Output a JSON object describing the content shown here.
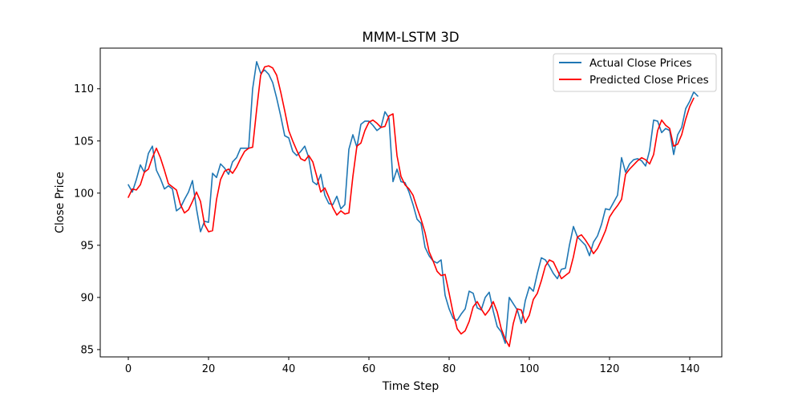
{
  "chart_data": {
    "type": "line",
    "title": "MMM-LSTM 3D",
    "xlabel": "Time Step",
    "ylabel": "Close Price",
    "xlim": [
      -7,
      148
    ],
    "ylim": [
      84.3,
      113.9
    ],
    "xticks": [
      0,
      20,
      40,
      60,
      80,
      100,
      120,
      140
    ],
    "yticks": [
      85,
      90,
      95,
      100,
      105,
      110
    ],
    "grid": false,
    "legend_position": "top-right",
    "series": [
      {
        "name": "Actual Close Prices",
        "color": "#1f77b4",
        "values": [
          100.8,
          100.1,
          101.3,
          102.7,
          102.0,
          103.8,
          104.5,
          102.2,
          101.4,
          100.4,
          100.7,
          100.4,
          98.3,
          98.6,
          99.4,
          100.1,
          101.2,
          98.5,
          96.3,
          97.3,
          97.2,
          101.9,
          101.5,
          102.8,
          102.4,
          101.8,
          103.0,
          103.4,
          104.3,
          104.3,
          104.3,
          110.0,
          112.6,
          111.5,
          111.8,
          111.4,
          110.6,
          109.1,
          107.4,
          105.5,
          105.3,
          104.0,
          103.6,
          104.0,
          104.5,
          103.4,
          101.1,
          100.8,
          101.8,
          99.8,
          99.0,
          98.9,
          99.7,
          98.5,
          98.9,
          104.2,
          105.6,
          104.4,
          106.6,
          106.9,
          106.9,
          106.5,
          106.0,
          106.3,
          107.8,
          107.2,
          101.1,
          102.3,
          101.1,
          101.0,
          100.1,
          98.9,
          97.5,
          97.1,
          94.8,
          94.0,
          93.5,
          93.3,
          93.6,
          90.2,
          88.9,
          88.0,
          87.8,
          88.4,
          88.9,
          90.6,
          90.4,
          89.0,
          88.8,
          90.0,
          90.5,
          88.7,
          87.2,
          86.7,
          85.6,
          90.0,
          89.4,
          88.8,
          87.5,
          89.7,
          91.0,
          90.6,
          92.3,
          93.8,
          93.6,
          93.0,
          92.3,
          91.8,
          92.7,
          92.8,
          95.0,
          96.8,
          95.8,
          95.4,
          95.0,
          94.0,
          95.3,
          95.9,
          97.0,
          98.5,
          98.4,
          99.1,
          99.8,
          103.4,
          102.0,
          102.8,
          103.2,
          103.3,
          103.1,
          102.6,
          104.1,
          107.0,
          106.9,
          105.8,
          106.2,
          106.0,
          103.7,
          105.6,
          106.3,
          108.1,
          108.8,
          109.7,
          109.3
        ]
      },
      {
        "name": "Predicted Close Prices",
        "color": "#ff0000",
        "values": [
          99.6,
          100.4,
          100.3,
          100.8,
          102.0,
          102.3,
          103.4,
          104.3,
          103.4,
          102.2,
          100.9,
          100.6,
          100.3,
          98.9,
          98.1,
          98.4,
          99.2,
          100.1,
          99.2,
          97.0,
          96.3,
          96.4,
          99.4,
          101.3,
          102.1,
          102.3,
          101.9,
          102.5,
          103.3,
          104.0,
          104.3,
          104.4,
          108.0,
          111.3,
          112.1,
          112.2,
          112.0,
          111.3,
          109.7,
          107.9,
          106.0,
          105.0,
          104.1,
          103.3,
          103.1,
          103.6,
          103.0,
          101.6,
          100.1,
          100.5,
          99.6,
          98.6,
          97.9,
          98.3,
          98.0,
          98.1,
          101.6,
          104.5,
          104.8,
          106.0,
          106.8,
          107.0,
          106.7,
          106.3,
          106.4,
          107.4,
          107.6,
          103.6,
          101.6,
          100.8,
          100.4,
          99.8,
          98.6,
          97.5,
          96.2,
          94.4,
          93.5,
          92.5,
          92.1,
          92.2,
          90.4,
          88.5,
          87.0,
          86.5,
          86.8,
          87.7,
          89.1,
          89.6,
          88.9,
          88.3,
          88.8,
          89.6,
          88.6,
          87.0,
          86.0,
          85.3,
          87.5,
          88.9,
          88.8,
          87.6,
          88.3,
          89.8,
          90.4,
          91.6,
          93.0,
          93.6,
          93.4,
          92.6,
          91.8,
          92.1,
          92.4,
          93.9,
          95.8,
          96.0,
          95.5,
          94.9,
          94.2,
          94.7,
          95.5,
          96.4,
          97.7,
          98.3,
          98.8,
          99.4,
          101.8,
          102.3,
          102.7,
          103.1,
          103.4,
          103.2,
          102.8,
          103.7,
          106.0,
          107.0,
          106.5,
          106.2,
          104.5,
          104.7,
          105.6,
          107.1,
          108.3,
          109.1
        ]
      }
    ]
  }
}
